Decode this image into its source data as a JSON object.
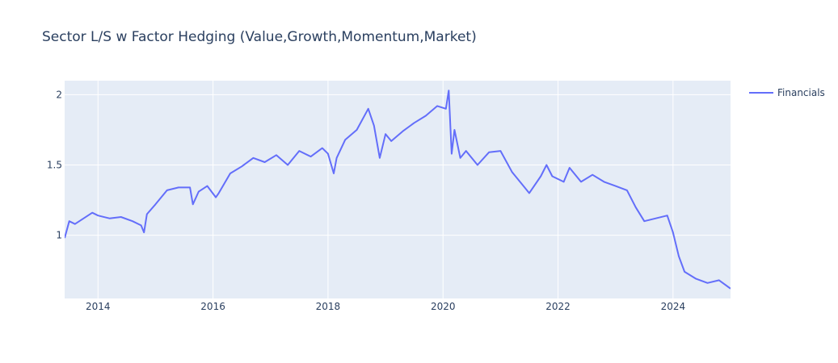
{
  "chart_data": {
    "type": "line",
    "title": "Sector L/S w Factor Hedging (Value,Growth,Momentum,Market)",
    "xlabel": "",
    "ylabel": "",
    "xlim": [
      2013.42,
      2025.0
    ],
    "ylim": [
      0.55,
      2.1
    ],
    "x_ticks": [
      2014,
      2016,
      2018,
      2020,
      2022,
      2024
    ],
    "x_tick_labels": [
      "2014",
      "2016",
      "2018",
      "2020",
      "2022",
      "2024"
    ],
    "y_ticks": [
      1,
      1.5,
      2
    ],
    "y_tick_labels": [
      "1",
      "1.5",
      "2"
    ],
    "grid": true,
    "legend_position": "top-right",
    "colors": {
      "plot_bg": "#e5ecf6",
      "grid": "#ffffff",
      "line": "#636efa",
      "text": "#2a3f5f"
    },
    "series": [
      {
        "name": "Financials",
        "x": [
          2013.42,
          2013.5,
          2013.6,
          2013.75,
          2013.9,
          2014.0,
          2014.2,
          2014.4,
          2014.6,
          2014.75,
          2014.8,
          2014.85,
          2015.0,
          2015.2,
          2015.4,
          2015.6,
          2015.65,
          2015.75,
          2015.9,
          2016.05,
          2016.1,
          2016.3,
          2016.5,
          2016.7,
          2016.9,
          2017.1,
          2017.3,
          2017.5,
          2017.7,
          2017.9,
          2018.0,
          2018.1,
          2018.15,
          2018.3,
          2018.5,
          2018.7,
          2018.8,
          2018.9,
          2019.0,
          2019.1,
          2019.3,
          2019.5,
          2019.7,
          2019.9,
          2020.05,
          2020.1,
          2020.15,
          2020.2,
          2020.3,
          2020.4,
          2020.6,
          2020.8,
          2021.0,
          2021.2,
          2021.4,
          2021.5,
          2021.7,
          2021.8,
          2021.9,
          2022.1,
          2022.2,
          2022.4,
          2022.6,
          2022.8,
          2023.0,
          2023.2,
          2023.35,
          2023.5,
          2023.7,
          2023.9,
          2024.0,
          2024.1,
          2024.2,
          2024.4,
          2024.6,
          2024.8,
          2025.0
        ],
        "y": [
          0.98,
          1.1,
          1.08,
          1.12,
          1.16,
          1.14,
          1.12,
          1.13,
          1.1,
          1.07,
          1.02,
          1.15,
          1.22,
          1.32,
          1.34,
          1.34,
          1.22,
          1.31,
          1.35,
          1.27,
          1.3,
          1.44,
          1.49,
          1.55,
          1.52,
          1.57,
          1.5,
          1.6,
          1.56,
          1.62,
          1.58,
          1.44,
          1.55,
          1.68,
          1.75,
          1.9,
          1.78,
          1.55,
          1.72,
          1.67,
          1.74,
          1.8,
          1.85,
          1.92,
          1.9,
          2.03,
          1.58,
          1.75,
          1.55,
          1.6,
          1.5,
          1.59,
          1.6,
          1.45,
          1.35,
          1.3,
          1.42,
          1.5,
          1.42,
          1.38,
          1.48,
          1.38,
          1.43,
          1.38,
          1.35,
          1.32,
          1.2,
          1.1,
          1.12,
          1.14,
          1.02,
          0.85,
          0.74,
          0.69,
          0.66,
          0.68,
          0.62
        ]
      }
    ]
  }
}
